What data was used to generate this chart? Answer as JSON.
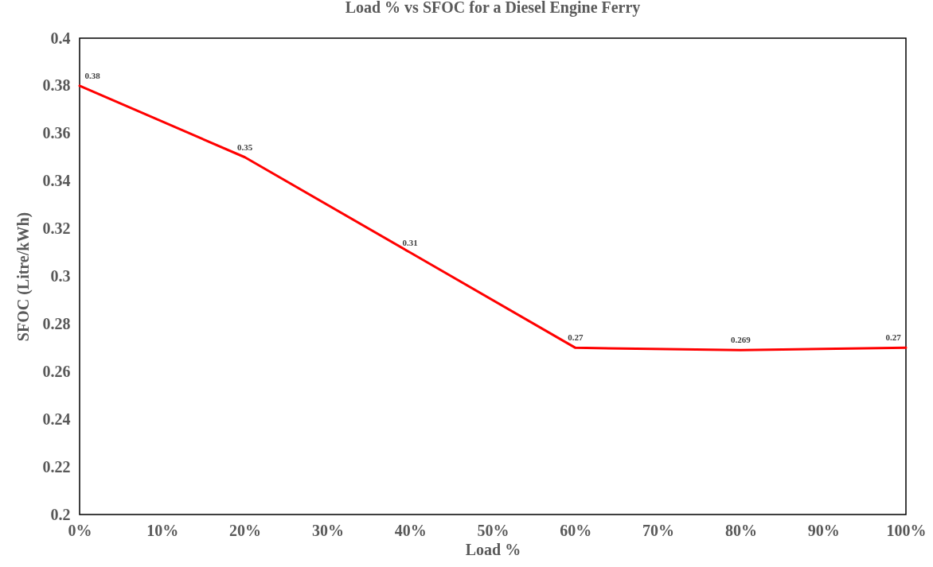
{
  "chart_data": {
    "type": "line",
    "title": "Load % vs SFOC for a Diesel Engine Ferry",
    "xlabel": "Load %",
    "ylabel": "SFOC (Litre/kWh)",
    "x": [
      0,
      20,
      40,
      60,
      80,
      100
    ],
    "series": [
      {
        "color": "#ff0000",
        "values": [
          0.38,
          0.35,
          0.31,
          0.27,
          0.269,
          0.27
        ]
      }
    ],
    "xlim": [
      0,
      100
    ],
    "xticks": [
      {
        "value": 0,
        "label": "0%"
      },
      {
        "value": 10,
        "label": "10%"
      },
      {
        "value": 20,
        "label": "20%"
      },
      {
        "value": 30,
        "label": "30%"
      },
      {
        "value": 40,
        "label": "40%"
      },
      {
        "value": 50,
        "label": "50%"
      },
      {
        "value": 60,
        "label": "60%"
      },
      {
        "value": 70,
        "label": "70%"
      },
      {
        "value": 80,
        "label": "80%"
      },
      {
        "value": 90,
        "label": "90%"
      },
      {
        "value": 100,
        "label": "100%"
      }
    ],
    "ylim": [
      0.2,
      0.4
    ],
    "yticks": [
      0.2,
      0.22,
      0.24,
      0.26,
      0.28,
      0.3,
      0.32,
      0.34,
      0.36,
      0.38,
      0.4
    ],
    "data_labels": true,
    "grid": false
  }
}
